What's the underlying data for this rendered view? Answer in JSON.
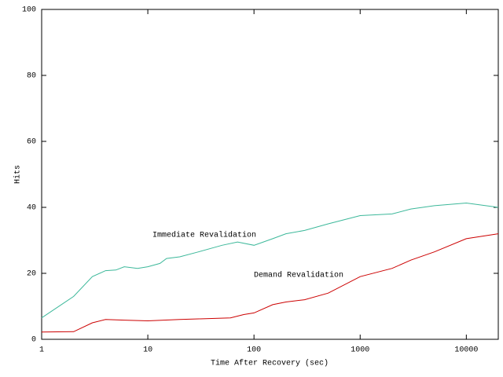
{
  "chart_data": {
    "type": "line",
    "x_label": "Time After Recovery (sec)",
    "y_label": "Hits",
    "xlim": [
      1,
      20000
    ],
    "xticks": [
      1,
      10,
      100,
      1000,
      10000
    ],
    "xlog": true,
    "ylim": [
      0,
      100
    ],
    "yticks": [
      0,
      20,
      40,
      60,
      80,
      100
    ],
    "series": [
      {
        "name": "Immediate Revalidation",
        "color": "#3cb89a",
        "x": [
          1,
          2,
          3,
          4,
          5,
          6,
          8,
          10,
          13,
          15,
          20,
          30,
          50,
          70,
          100,
          150,
          200,
          300,
          500,
          1000,
          2000,
          3000,
          5000,
          10000,
          20000
        ],
        "values": [
          6.5,
          13,
          19,
          20.8,
          21,
          22,
          21.5,
          22,
          23,
          24.5,
          25,
          26.5,
          28.5,
          29.5,
          28.5,
          30.5,
          32,
          33,
          35,
          37.5,
          38,
          39.5,
          40.5,
          41.3,
          40
        ]
      },
      {
        "name": "Demand Revalidation",
        "color": "#cc0000",
        "x": [
          1,
          2,
          3,
          4,
          6,
          10,
          20,
          30,
          60,
          80,
          100,
          150,
          200,
          300,
          500,
          1000,
          2000,
          3000,
          5000,
          10000,
          20000
        ],
        "values": [
          2.2,
          2.3,
          5,
          6,
          5.8,
          5.6,
          6,
          6.2,
          6.5,
          7.5,
          8,
          10.5,
          11.3,
          12,
          14,
          19,
          21.5,
          24,
          26.5,
          30.5,
          32
        ]
      }
    ]
  }
}
